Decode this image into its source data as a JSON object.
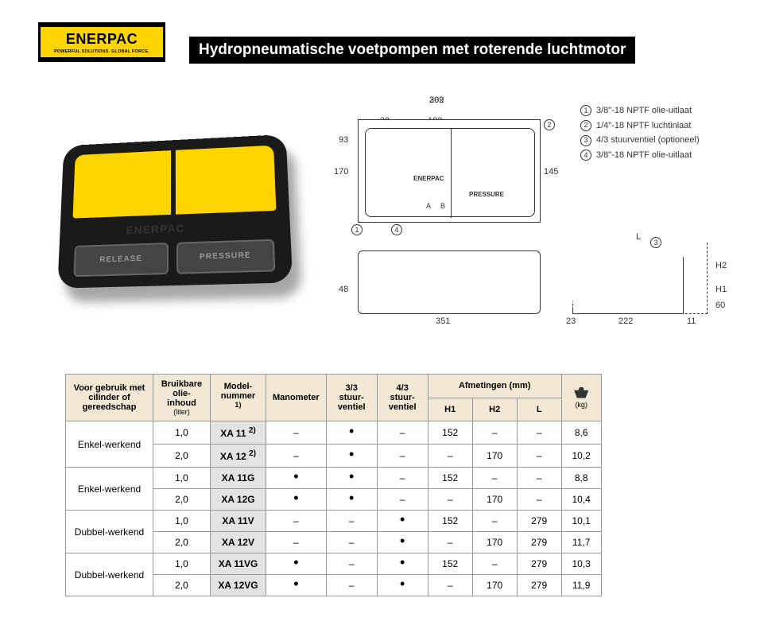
{
  "logo": {
    "name": "ENERPAC",
    "tagline": "POWERFUL SOLUTIONS. GLOBAL FORCE."
  },
  "title": "Hydropneumatische voetpompen met roterende luchtmotor",
  "photo": {
    "brand": "ENERPAC",
    "release": "RELEASE",
    "pressure": "PRESSURE"
  },
  "legend": [
    {
      "n": "1",
      "t": "3/8\"-18 NPTF olie-uitlaat"
    },
    {
      "n": "2",
      "t": "1/4\"-18 NPTF luchtinlaat"
    },
    {
      "n": "3",
      "t": "4/3 stuurventiel (optioneel)"
    },
    {
      "n": "4",
      "t": "3/8\"-18 NPTF olie-uitlaat"
    }
  ],
  "dims": {
    "d309": "309",
    "d292": "292",
    "d182": "182",
    "d38": "38",
    "d93": "93",
    "d170": "170",
    "d145": "145",
    "d48": "48",
    "d351": "351",
    "d23": "23",
    "d222": "222",
    "d11": "11",
    "d60": "60",
    "L": "L",
    "H1": "H1",
    "H2": "H2",
    "A": "A",
    "B": "B",
    "brand": "ENERPAC",
    "pressure": "PRESSURE"
  },
  "callouts": {
    "c1": "1",
    "c2": "2",
    "c3": "3",
    "c4": "4"
  },
  "tbl": {
    "h": {
      "use": "Voor gebruik met cilinder of gereedschap",
      "oil": "Bruikbare olie-inhoud",
      "oil_u": "(liter)",
      "mod": "Model-nummer",
      "mod_n": "1)",
      "mano": "Manometer",
      "v33": "3/3 stuur-ventiel",
      "v43": "4/3 stuur-ventiel",
      "dim": "Afmetingen (mm)",
      "h1": "H1",
      "h2": "H2",
      "L": "L",
      "kg": "(kg)"
    },
    "g": [
      "Enkel-werkend",
      "Enkel-werkend",
      "Dubbel-werkend",
      "Dubbel-werkend"
    ],
    "r": [
      {
        "oil": "1,0",
        "mod": "XA 11",
        "sup": "2)",
        "mano": "–",
        "v33": "•",
        "v43": "–",
        "h1": "152",
        "h2": "–",
        "L": "–",
        "kg": "8,6"
      },
      {
        "oil": "2,0",
        "mod": "XA 12",
        "sup": "2)",
        "mano": "–",
        "v33": "•",
        "v43": "–",
        "h1": "–",
        "h2": "170",
        "L": "–",
        "kg": "10,2"
      },
      {
        "oil": "1,0",
        "mod": "XA 11G",
        "sup": "",
        "mano": "•",
        "v33": "•",
        "v43": "–",
        "h1": "152",
        "h2": "–",
        "L": "–",
        "kg": "8,8"
      },
      {
        "oil": "2,0",
        "mod": "XA 12G",
        "sup": "",
        "mano": "•",
        "v33": "•",
        "v43": "–",
        "h1": "–",
        "h2": "170",
        "L": "–",
        "kg": "10,4"
      },
      {
        "oil": "1,0",
        "mod": "XA 11V",
        "sup": "",
        "mano": "–",
        "v33": "–",
        "v43": "•",
        "h1": "152",
        "h2": "–",
        "L": "279",
        "kg": "10,1"
      },
      {
        "oil": "2,0",
        "mod": "XA 12V",
        "sup": "",
        "mano": "–",
        "v33": "–",
        "v43": "•",
        "h1": "–",
        "h2": "170",
        "L": "279",
        "kg": "11,7"
      },
      {
        "oil": "1,0",
        "mod": "XA 11VG",
        "sup": "",
        "mano": "•",
        "v33": "–",
        "v43": "•",
        "h1": "152",
        "h2": "–",
        "L": "279",
        "kg": "10,3"
      },
      {
        "oil": "2,0",
        "mod": "XA 12VG",
        "sup": "",
        "mano": "•",
        "v33": "–",
        "v43": "•",
        "h1": "–",
        "h2": "170",
        "L": "279",
        "kg": "11,9"
      }
    ]
  }
}
